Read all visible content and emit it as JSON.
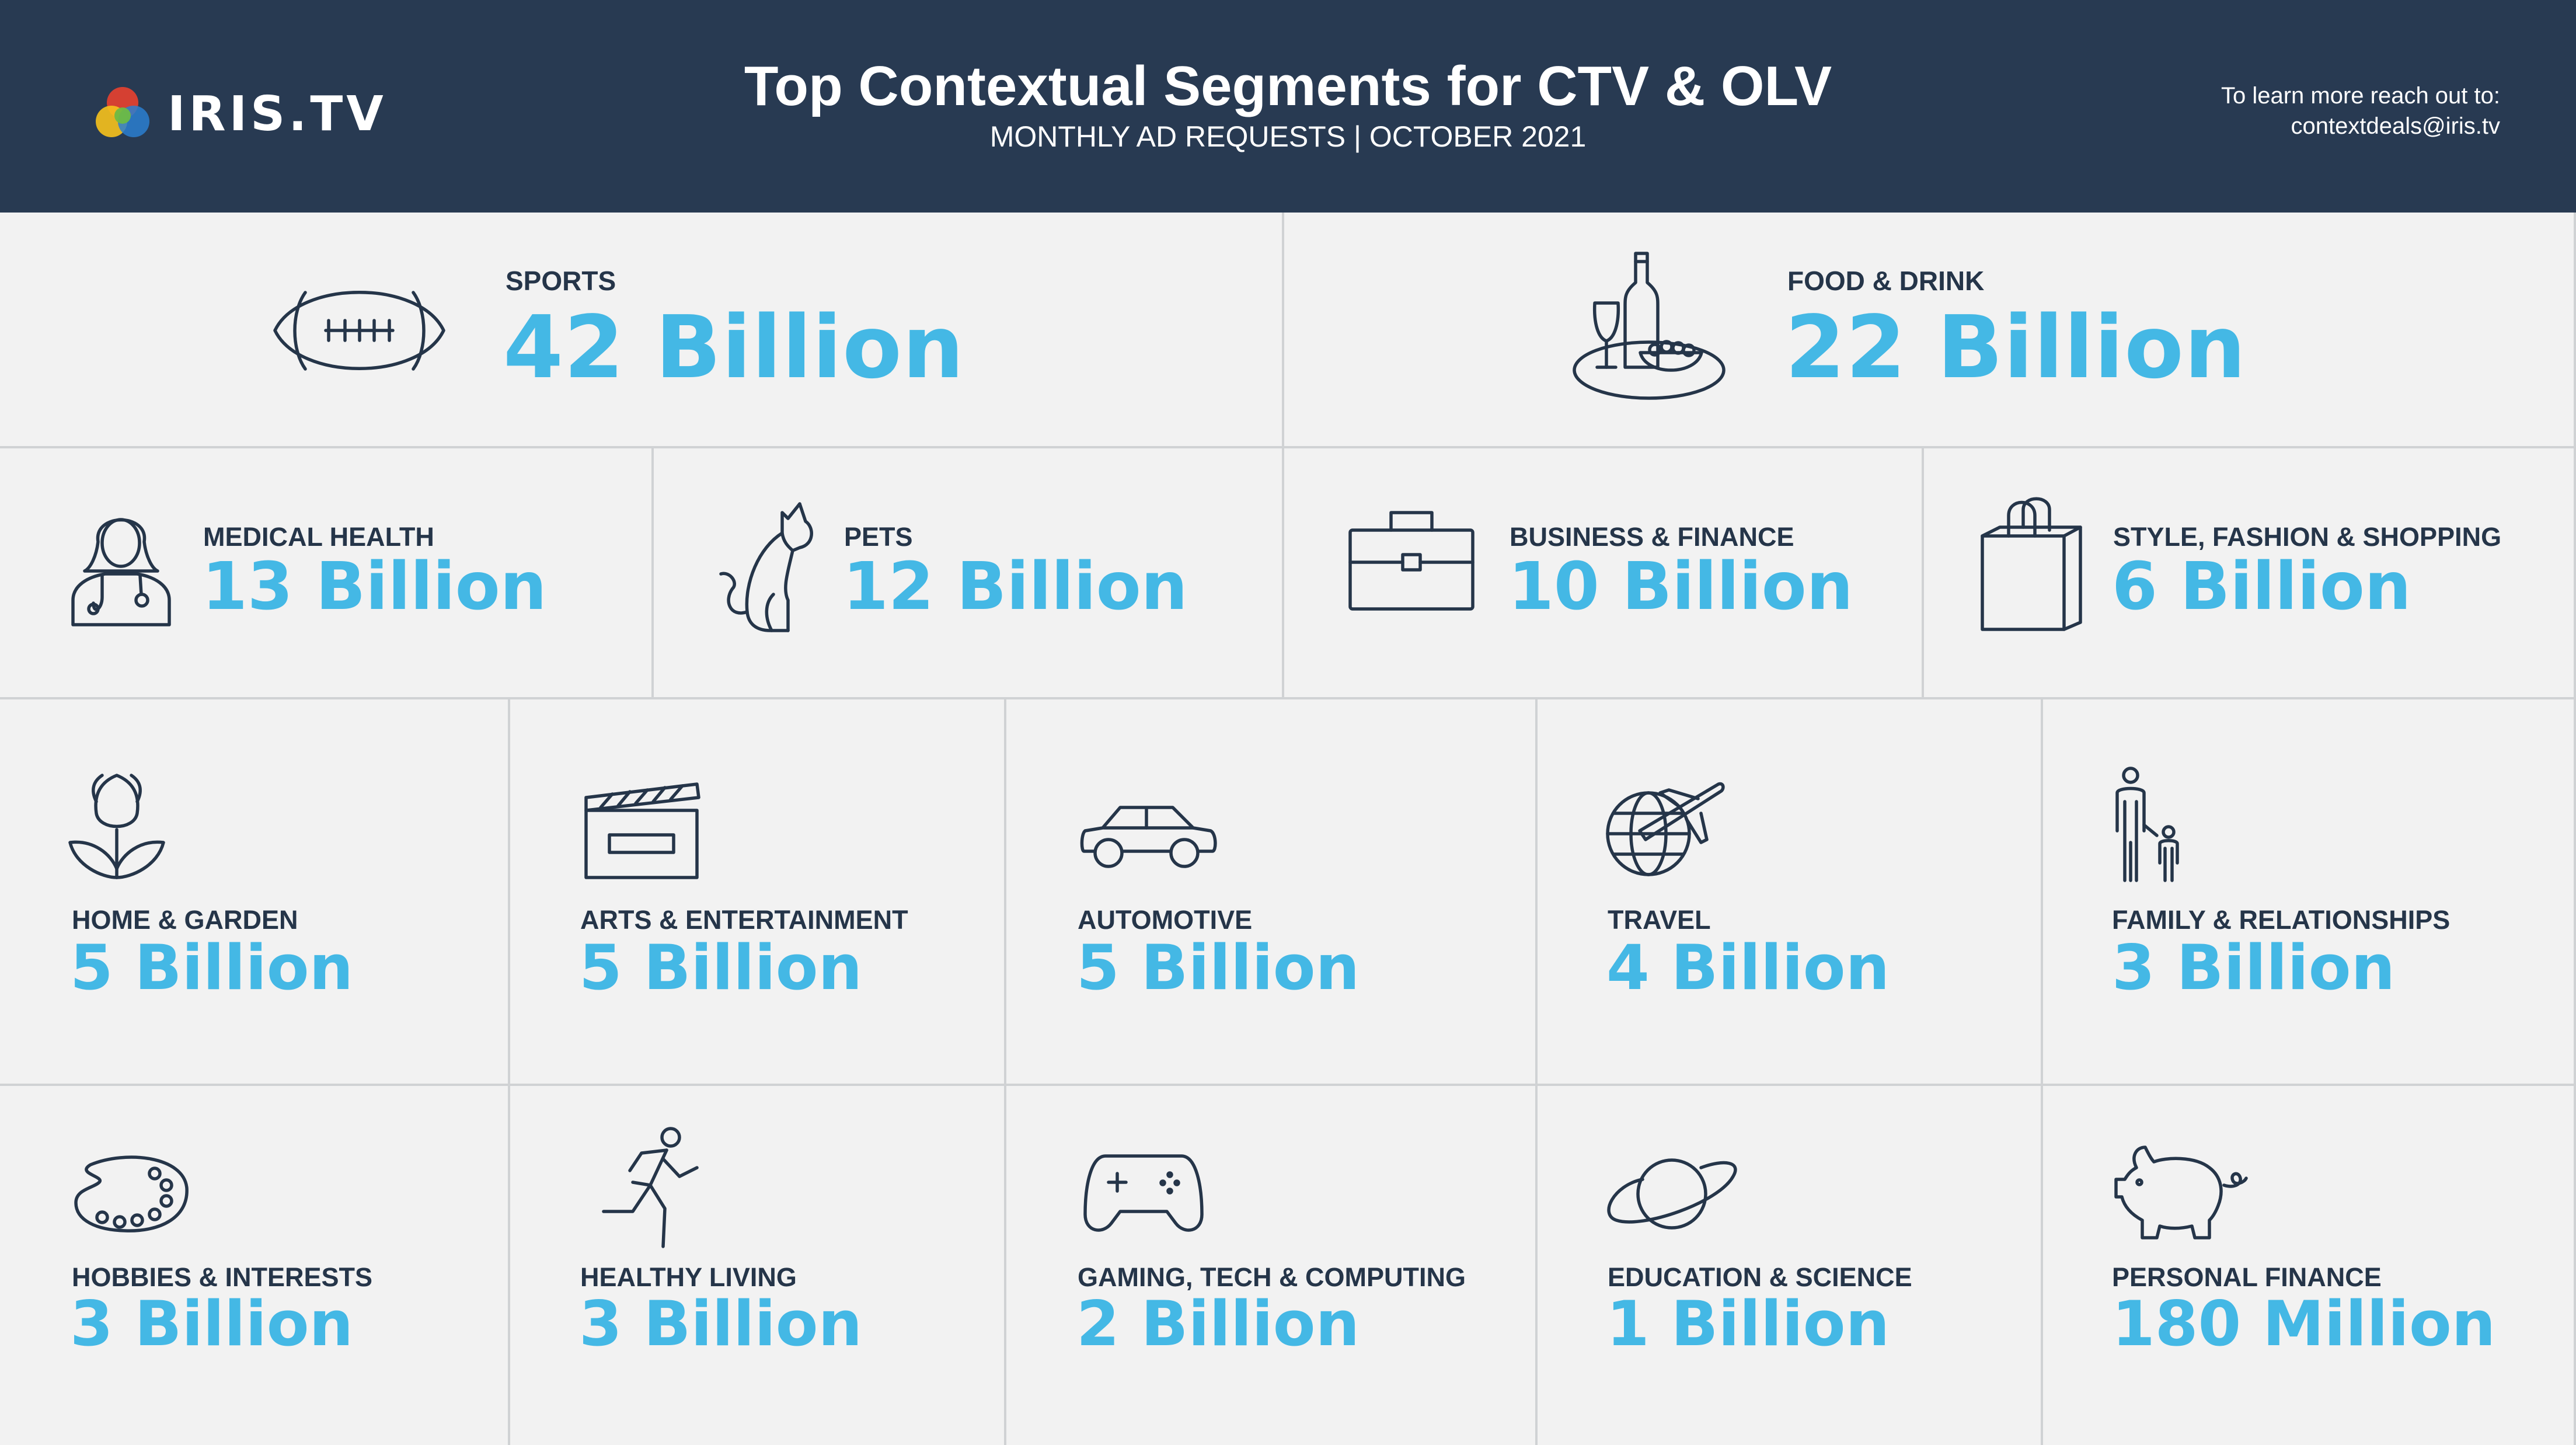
{
  "header": {
    "logo_text": "IRIS.TV",
    "title": "Top Contextual Segments for CTV & OLV",
    "subtitle": "MONTHLY AD REQUESTS | OCTOBER 2021",
    "contact_line1": "To learn more reach out to:",
    "contact_line2": "contextdeals@iris.tv"
  },
  "colors": {
    "header_bg": "#283a52",
    "accent": "#44b8e5",
    "text_dark": "#253549",
    "background": "#f2f2f2",
    "divider": "#d0d2d4"
  },
  "segments": [
    {
      "label": "SPORTS",
      "value": "42 Billion",
      "icon": "football-icon"
    },
    {
      "label": "FOOD & DRINK",
      "value": "22 Billion",
      "icon": "wine-bottle-icon"
    },
    {
      "label": "MEDICAL HEALTH",
      "value": "13 Billion",
      "icon": "doctor-icon"
    },
    {
      "label": "PETS",
      "value": "12 Billion",
      "icon": "cat-icon"
    },
    {
      "label": "BUSINESS & FINANCE",
      "value": "10 Billion",
      "icon": "briefcase-icon"
    },
    {
      "label": "STYLE, FASHION & SHOPPING",
      "value": "6 Billion",
      "icon": "shopping-bag-icon"
    },
    {
      "label": "HOME & GARDEN",
      "value": "5 Billion",
      "icon": "tulip-icon"
    },
    {
      "label": "ARTS & ENTERTAINMENT",
      "value": "5 Billion",
      "icon": "clapperboard-icon"
    },
    {
      "label": "AUTOMOTIVE",
      "value": "5 Billion",
      "icon": "car-icon"
    },
    {
      "label": "TRAVEL",
      "value": "4 Billion",
      "icon": "airplane-globe-icon"
    },
    {
      "label": "FAMILY & RELATIONSHIPS",
      "value": "3 Billion",
      "icon": "parent-child-icon"
    },
    {
      "label": "HOBBIES & INTERESTS",
      "value": "3 Billion",
      "icon": "paint-palette-icon"
    },
    {
      "label": "HEALTHY LIVING",
      "value": "3 Billion",
      "icon": "runner-icon"
    },
    {
      "label": "GAMING, TECH & COMPUTING",
      "value": "2 Billion",
      "icon": "game-controller-icon"
    },
    {
      "label": "EDUCATION & SCIENCE",
      "value": "1 Billion",
      "icon": "planet-icon"
    },
    {
      "label": "PERSONAL FINANCE",
      "value": "180 Million",
      "icon": "piggy-bank-icon"
    }
  ]
}
